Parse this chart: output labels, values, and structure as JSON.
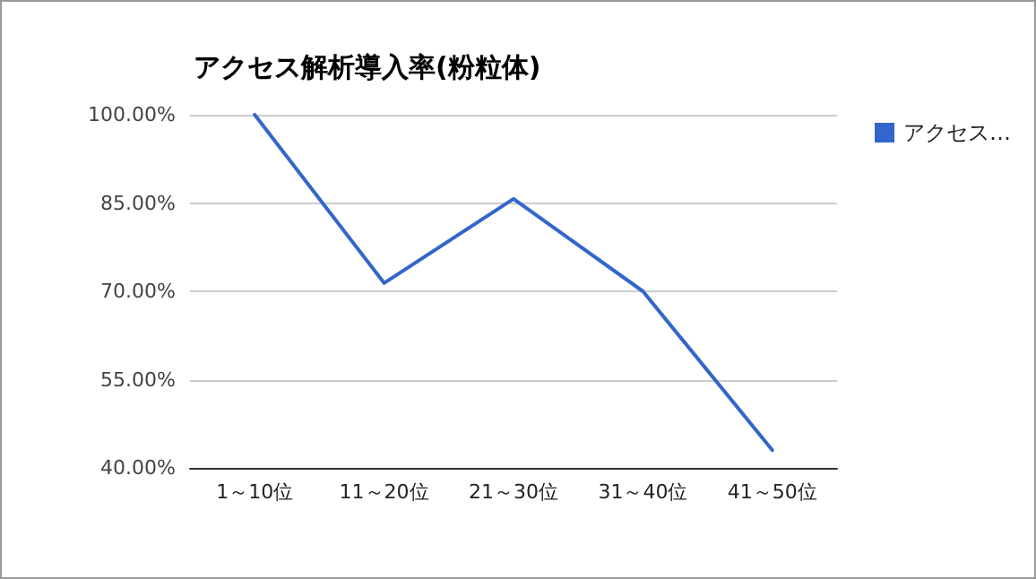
{
  "chart_data": {
    "type": "line",
    "title": "アクセス解析導入率(粉粒体)",
    "categories": [
      "1～10位",
      "11～20位",
      "21～30位",
      "31～40位",
      "41～50位"
    ],
    "series": [
      {
        "name": "アクセス…",
        "color": "#3366cc",
        "values": [
          100,
          71.4,
          85.7,
          70,
          43
        ]
      }
    ],
    "ylim": [
      40,
      100
    ],
    "yticks": [
      {
        "value": 40,
        "label": "40.00%"
      },
      {
        "value": 55,
        "label": "55.00%"
      },
      {
        "value": 70,
        "label": "70.00%"
      },
      {
        "value": 85,
        "label": "85.00%"
      },
      {
        "value": 100,
        "label": "100.00%"
      }
    ],
    "grid": "y",
    "legend": "top right",
    "marker": "none",
    "line_style": "solid"
  }
}
